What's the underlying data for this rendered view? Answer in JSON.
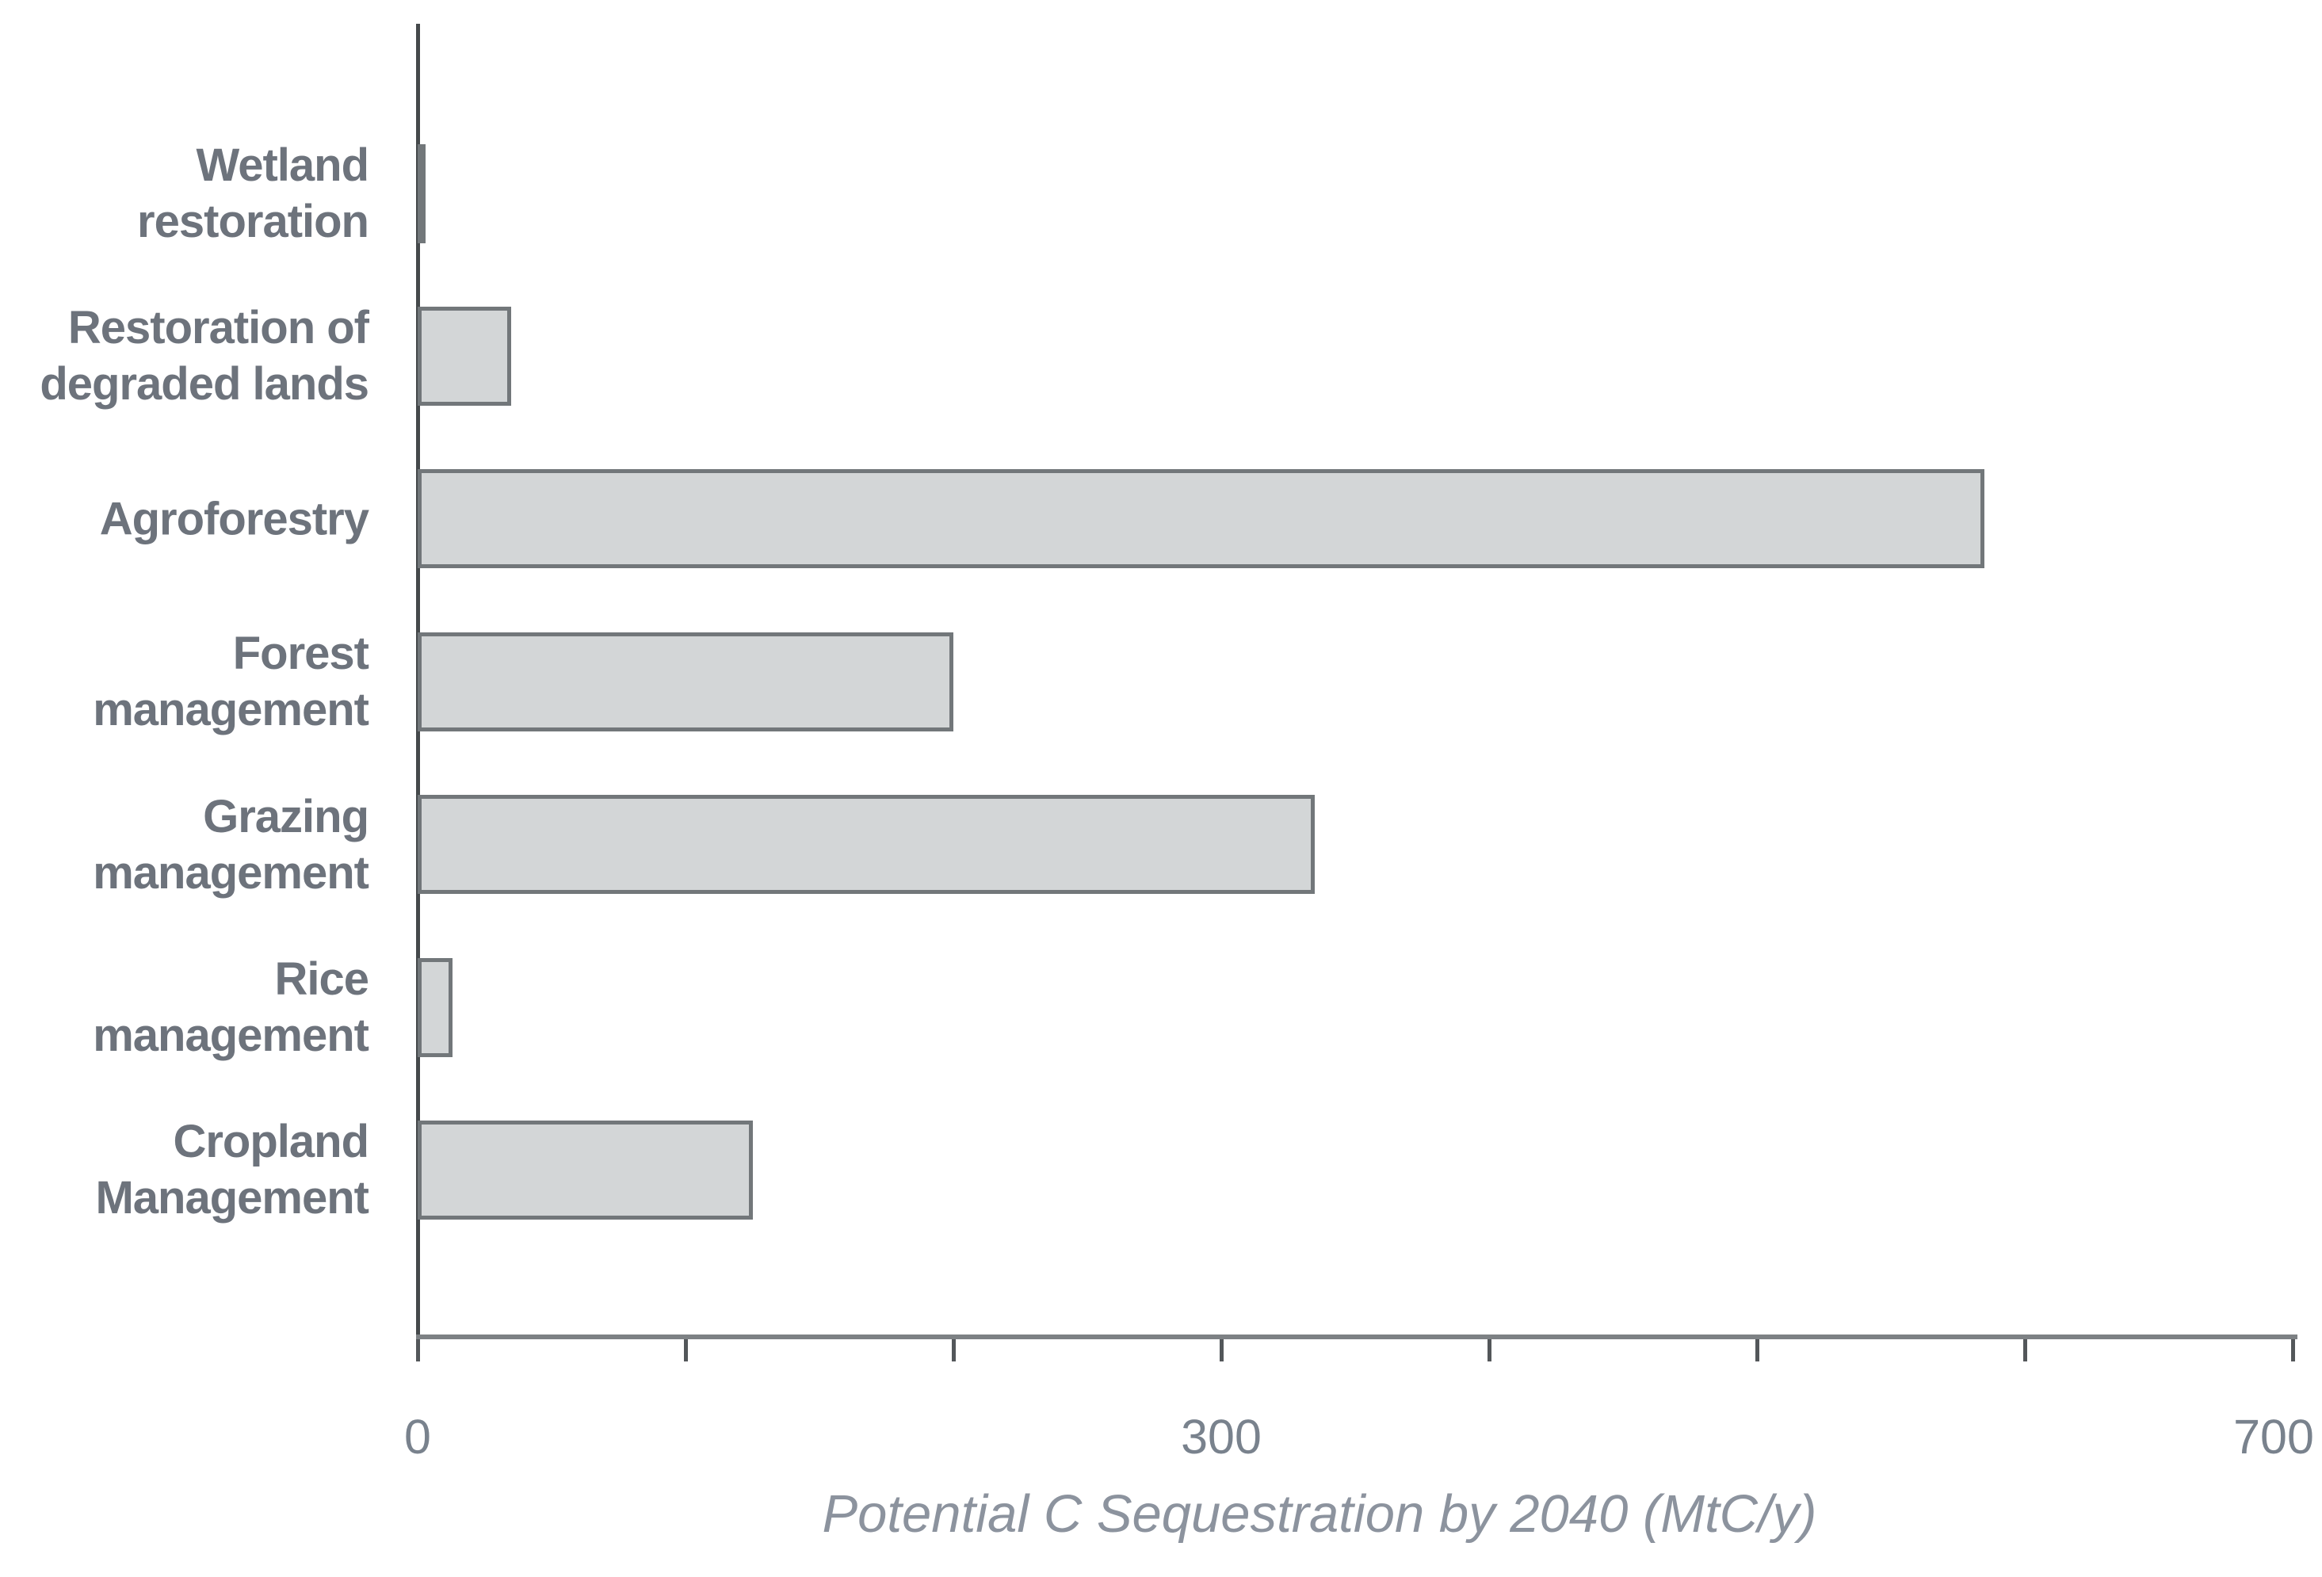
{
  "chart_data": {
    "type": "bar",
    "orientation": "horizontal",
    "title": "",
    "xlabel": "Potential C Sequestration by 2040 (MtC/y)",
    "ylabel": "",
    "xlim": [
      0,
      700
    ],
    "grid": false,
    "legend": false,
    "categories": [
      "Wetland\nrestoration",
      "Restoration of\ndegraded lands",
      "Agroforestry",
      "Forest\nmanagement",
      "Grazing\nmanagement",
      "Rice management",
      "Cropland\nManagement"
    ],
    "values": [
      2,
      35,
      585,
      200,
      335,
      13,
      125
    ],
    "axis_ticks": [
      0,
      100,
      200,
      300,
      400,
      500,
      600,
      700
    ],
    "tick_labels": [
      {
        "value": 0,
        "label": "0"
      },
      {
        "value": 300,
        "label": "300"
      },
      {
        "value": 700,
        "label": "700"
      }
    ],
    "bar_fill_color": "#d3d6d7",
    "bar_border_color": "#72777a"
  }
}
